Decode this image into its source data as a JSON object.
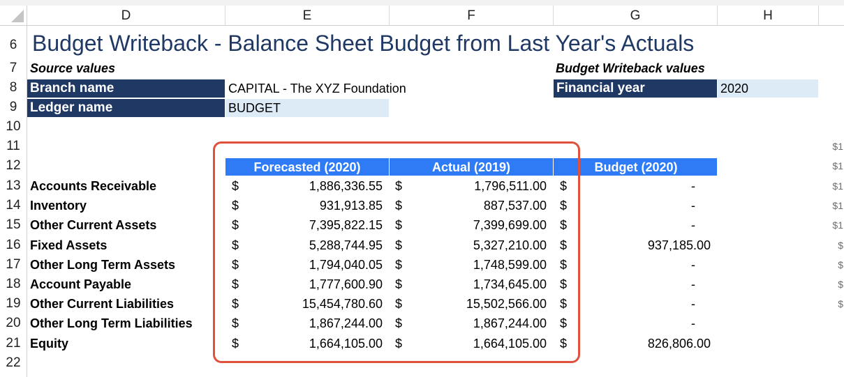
{
  "columns": [
    "D",
    "E",
    "F",
    "G",
    "H"
  ],
  "row_numbers": [
    "6",
    "7",
    "8",
    "9",
    "10",
    "11",
    "12",
    "13",
    "14",
    "15",
    "16",
    "17",
    "18",
    "19",
    "20",
    "21",
    "22"
  ],
  "title": "Budget Writeback - Balance Sheet Budget from Last Year's Actuals",
  "source": {
    "heading": "Source values",
    "branch_label": "Branch name",
    "branch_value": "CAPITAL - The XYZ Foundation",
    "ledger_label": "Ledger name",
    "ledger_value": "BUDGET"
  },
  "writeback": {
    "heading": "Budget Writeback values",
    "fy_label": "Financial year",
    "fy_value": "2020"
  },
  "table": {
    "headers": [
      "Forecasted (2020)",
      "Actual (2019)",
      "Budget (2020)"
    ],
    "currency": "$",
    "rows": [
      {
        "label": "Accounts Receivable",
        "forecast": "1,886,336.55",
        "actual": "1,796,511.00",
        "budget": "-"
      },
      {
        "label": "Inventory",
        "forecast": "931,913.85",
        "actual": "887,537.00",
        "budget": "-"
      },
      {
        "label": "Other Current Assets",
        "forecast": "7,395,822.15",
        "actual": "7,399,699.00",
        "budget": "-"
      },
      {
        "label": "Fixed Assets",
        "forecast": "5,288,744.95",
        "actual": "5,327,210.00",
        "budget": "937,185.00"
      },
      {
        "label": "Other Long Term Assets",
        "forecast": "1,794,040.05",
        "actual": "1,748,599.00",
        "budget": "-"
      },
      {
        "label": "Account Payable",
        "forecast": "1,777,600.90",
        "actual": "1,734,645.00",
        "budget": "-"
      },
      {
        "label": "Other Current Liabilities",
        "forecast": "15,454,780.60",
        "actual": "15,502,566.00",
        "budget": "-"
      },
      {
        "label": "Other Long Term Liabilities",
        "forecast": "1,867,244.00",
        "actual": "1,867,244.00",
        "budget": "-"
      },
      {
        "label": "Equity",
        "forecast": "1,664,105.00",
        "actual": "1,664,105.00",
        "budget": "826,806.00"
      }
    ]
  },
  "edge_values": [
    "$1",
    "$1",
    "$1",
    "$1",
    "$1",
    "$",
    "$",
    "$",
    "$"
  ],
  "colors": {
    "navy": "#1f3864",
    "table_header_blue": "#2f7bf5",
    "input_cell": "#ddebf7",
    "highlight_border": "#e0503c"
  }
}
